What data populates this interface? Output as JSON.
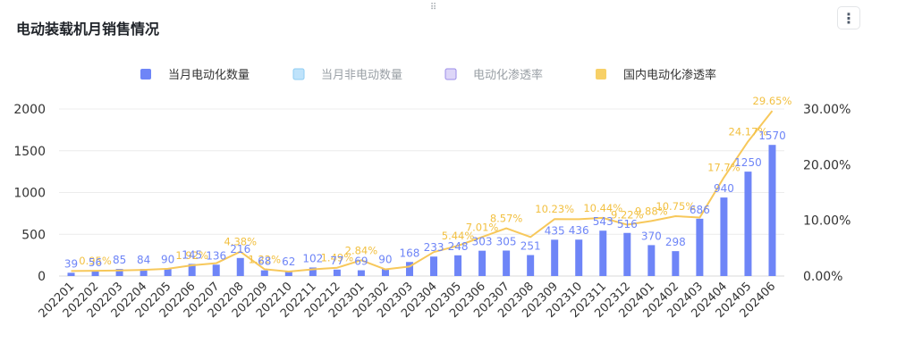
{
  "title": "电动装载机月销售情况",
  "icons": {
    "drag": "drag-handle-icon",
    "menu": "more-vertical-icon"
  },
  "chart_data": {
    "type": "bar",
    "categories": [
      "202201",
      "202202",
      "202203",
      "202204",
      "202205",
      "202206",
      "202207",
      "202208",
      "202209",
      "202210",
      "202211",
      "202212",
      "202301",
      "202302",
      "202303",
      "202304",
      "202305",
      "202306",
      "202307",
      "202308",
      "202309",
      "202310",
      "202311",
      "202312",
      "202401",
      "202402",
      "202403",
      "202404",
      "202405",
      "202406"
    ],
    "legend": [
      {
        "name": "当月电动化数量",
        "color": "#6e85f7",
        "active": true
      },
      {
        "name": "当月非电动数量",
        "color": "#bfe3fb",
        "active": false
      },
      {
        "name": "电动化渗透率",
        "color": "#ddd6f8",
        "active": false
      },
      {
        "name": "国内电动化渗透率",
        "color": "#f7d067",
        "active": true
      }
    ],
    "series": [
      {
        "name": "当月电动化数量",
        "axis": "left",
        "color": "#6e85f7",
        "values": [
          39,
          56,
          85,
          84,
          90,
          145,
          136,
          216,
          68,
          62,
          102,
          77,
          69,
          90,
          168,
          233,
          248,
          303,
          305,
          251,
          435,
          436,
          543,
          516,
          370,
          298,
          686,
          940,
          1250,
          1570
        ]
      },
      {
        "name": "国内电动化渗透率",
        "axis": "right",
        "color": "#f7c85b",
        "values": [
          0.9,
          0.95,
          1.0,
          1.1,
          1.3,
          1.92,
          2.3,
          4.38,
          1.22,
          0.8,
          1.2,
          1.49,
          2.84,
          1.2,
          1.7,
          4.3,
          5.44,
          7.01,
          8.57,
          7.0,
          10.23,
          10.2,
          10.44,
          9.22,
          9.88,
          10.75,
          10.5,
          17.7,
          24.17,
          29.65
        ],
        "labels": [
          "",
          "0.95%",
          "",
          "",
          "",
          "1.92%",
          "",
          "4.38%",
          "1.22%",
          "",
          "",
          "1.49%",
          "2.84%",
          "",
          "",
          "",
          "5.44%",
          "7.01%",
          "8.57%",
          "",
          "10.23%",
          "",
          "10.44%",
          "9.22%",
          "9.88%",
          "10.75%",
          "",
          "17.7%",
          "24.17%",
          "29.65%"
        ]
      }
    ],
    "y_left": {
      "min": 0,
      "max": 2000,
      "ticks": [
        "0",
        "500",
        "1000",
        "1500",
        "2000"
      ],
      "values": [
        0,
        500,
        1000,
        1500,
        2000
      ]
    },
    "y_right": {
      "min": 0,
      "max": 30,
      "ticks": [
        "0.00%",
        "10.00%",
        "20.00%",
        "30.00%"
      ],
      "values": [
        0,
        10,
        20,
        30
      ]
    },
    "grid": true,
    "legend_position": "top-center"
  }
}
